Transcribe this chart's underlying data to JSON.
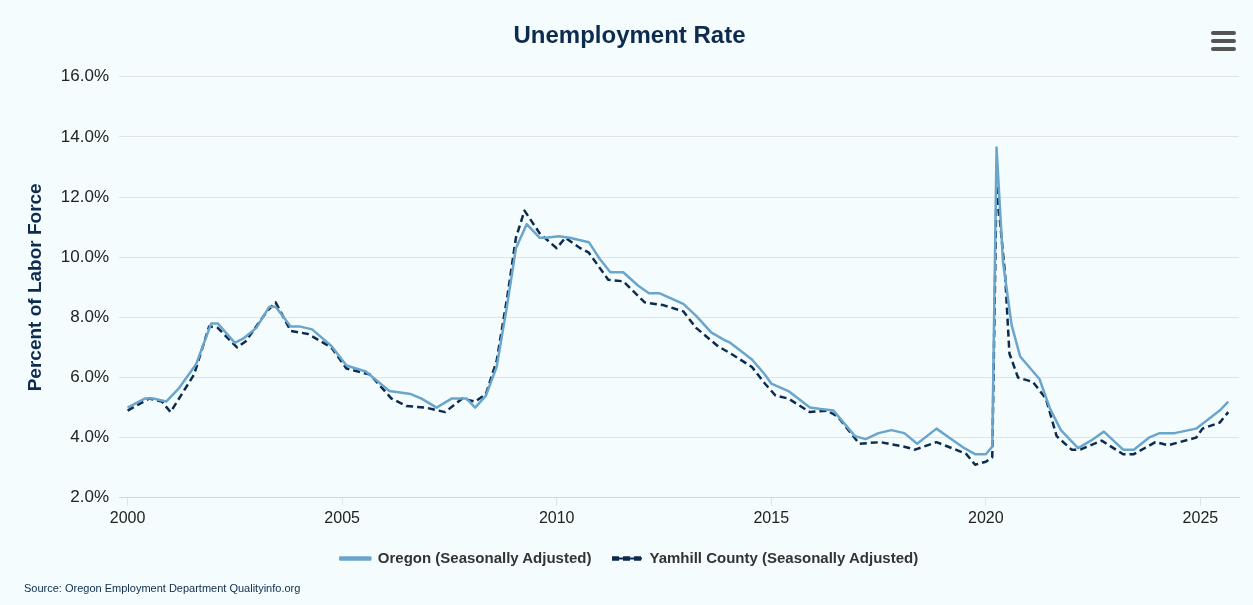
{
  "chart_data": {
    "type": "line",
    "title": "Unemployment Rate",
    "ylabel": "Percent of Labor Force",
    "annotations": [
      "Source: Oregon Employment Department Qualityinfo.org"
    ],
    "xlim": [
      1999.8,
      2025.9
    ],
    "xticks": [
      2000,
      2005,
      2010,
      2015,
      2020,
      2025
    ],
    "ylim": [
      2,
      16
    ],
    "yticks": [
      {
        "value": 2,
        "label": "2.0%"
      },
      {
        "value": 4,
        "label": "4.0%"
      },
      {
        "value": 6,
        "label": "6.0%"
      },
      {
        "value": 8,
        "label": "8.0%"
      },
      {
        "value": 10,
        "label": "10.0%"
      },
      {
        "value": 12,
        "label": "12.0%"
      },
      {
        "value": 14,
        "label": "14.0%"
      },
      {
        "value": 16,
        "label": "16.0%"
      }
    ],
    "grid": "y",
    "legend": "bottom",
    "marker": "none",
    "series": [
      {
        "name": "Oregon (Seasonally Adjusted)",
        "color": "#6aa5cc",
        "line_style": "solid",
        "x": [
          2000.0,
          2000.4,
          2000.6,
          2000.9,
          2001.2,
          2001.6,
          2001.95,
          2002.1,
          2002.5,
          2002.7,
          2003.0,
          2003.3,
          2003.45,
          2003.8,
          2004.0,
          2004.3,
          2004.75,
          2005.1,
          2005.55,
          2006.1,
          2006.6,
          2006.85,
          2007.2,
          2007.55,
          2007.9,
          2008.1,
          2008.35,
          2008.6,
          2008.85,
          2009.05,
          2009.3,
          2009.6,
          2009.75,
          2010.05,
          2010.3,
          2010.75,
          2011.0,
          2011.25,
          2011.55,
          2011.9,
          2012.15,
          2012.4,
          2012.95,
          2013.25,
          2013.6,
          2013.9,
          2014.05,
          2014.55,
          2014.85,
          2015.0,
          2015.4,
          2015.9,
          2016.15,
          2016.45,
          2016.95,
          2017.2,
          2017.5,
          2017.8,
          2018.1,
          2018.4,
          2018.85,
          2019.2,
          2019.5,
          2019.75,
          2020.0,
          2020.15,
          2020.25,
          2020.4,
          2020.6,
          2020.8,
          2021.25,
          2021.5,
          2021.75,
          2022.15,
          2022.45,
          2022.75,
          2023.2,
          2023.45,
          2023.8,
          2024.05,
          2024.4,
          2024.9,
          2025.45,
          2025.65
        ],
        "values": [
          5.0,
          5.3,
          5.3,
          5.2,
          5.65,
          6.45,
          7.8,
          7.8,
          7.15,
          7.3,
          7.65,
          8.35,
          8.35,
          7.7,
          7.7,
          7.6,
          7.05,
          6.4,
          6.2,
          5.55,
          5.45,
          5.3,
          5.0,
          5.3,
          5.3,
          5.0,
          5.4,
          6.35,
          8.45,
          10.3,
          11.1,
          10.65,
          10.65,
          10.7,
          10.65,
          10.5,
          9.95,
          9.5,
          9.5,
          9.05,
          8.8,
          8.8,
          8.45,
          8.05,
          7.5,
          7.25,
          7.15,
          6.6,
          6.1,
          5.8,
          5.55,
          5.0,
          4.95,
          4.9,
          4.05,
          3.95,
          4.15,
          4.25,
          4.15,
          3.8,
          4.3,
          3.95,
          3.65,
          3.45,
          3.45,
          3.7,
          13.65,
          9.85,
          7.75,
          6.7,
          5.95,
          4.95,
          4.25,
          3.65,
          3.9,
          4.2,
          3.6,
          3.6,
          4.0,
          4.15,
          4.15,
          4.3,
          4.9,
          5.2
        ]
      },
      {
        "name": "Yamhill County (Seasonally Adjusted)",
        "color": "#0d2b4e",
        "line_style": "dashed",
        "x": [
          2000.0,
          2000.5,
          2000.8,
          2001.0,
          2001.55,
          2001.9,
          2002.1,
          2002.55,
          2002.75,
          2003.25,
          2003.45,
          2003.8,
          2004.2,
          2004.75,
          2005.1,
          2005.65,
          2006.15,
          2006.5,
          2006.95,
          2007.4,
          2007.8,
          2008.1,
          2008.35,
          2008.6,
          2008.85,
          2009.05,
          2009.25,
          2009.6,
          2009.8,
          2010.0,
          2010.2,
          2010.55,
          2010.75,
          2011.2,
          2011.55,
          2012.05,
          2012.5,
          2012.95,
          2013.25,
          2013.75,
          2014.05,
          2014.55,
          2014.85,
          2015.1,
          2015.4,
          2015.9,
          2016.3,
          2016.55,
          2017.05,
          2017.55,
          2018.1,
          2018.35,
          2018.85,
          2019.3,
          2019.55,
          2019.75,
          2020.0,
          2020.15,
          2020.25,
          2020.45,
          2020.55,
          2020.75,
          2021.1,
          2021.4,
          2021.65,
          2022.0,
          2022.2,
          2022.7,
          2023.2,
          2023.45,
          2023.95,
          2024.25,
          2024.9,
          2025.05,
          2025.45,
          2025.65
        ],
        "values": [
          4.9,
          5.3,
          5.2,
          4.85,
          6.1,
          7.7,
          7.65,
          7.0,
          7.2,
          8.2,
          8.5,
          7.55,
          7.45,
          7.0,
          6.3,
          6.1,
          5.3,
          5.05,
          5.0,
          4.85,
          5.3,
          5.2,
          5.45,
          6.55,
          8.7,
          10.65,
          11.55,
          10.8,
          10.55,
          10.3,
          10.65,
          10.3,
          10.15,
          9.25,
          9.2,
          8.5,
          8.4,
          8.2,
          7.65,
          7.05,
          6.8,
          6.35,
          5.8,
          5.4,
          5.3,
          4.85,
          4.9,
          4.7,
          3.8,
          3.85,
          3.7,
          3.6,
          3.85,
          3.6,
          3.45,
          3.1,
          3.2,
          3.35,
          12.4,
          9.4,
          6.8,
          6.0,
          5.85,
          5.3,
          4.05,
          3.6,
          3.6,
          3.9,
          3.45,
          3.45,
          3.85,
          3.75,
          4.0,
          4.3,
          4.5,
          4.85
        ]
      }
    ]
  }
}
